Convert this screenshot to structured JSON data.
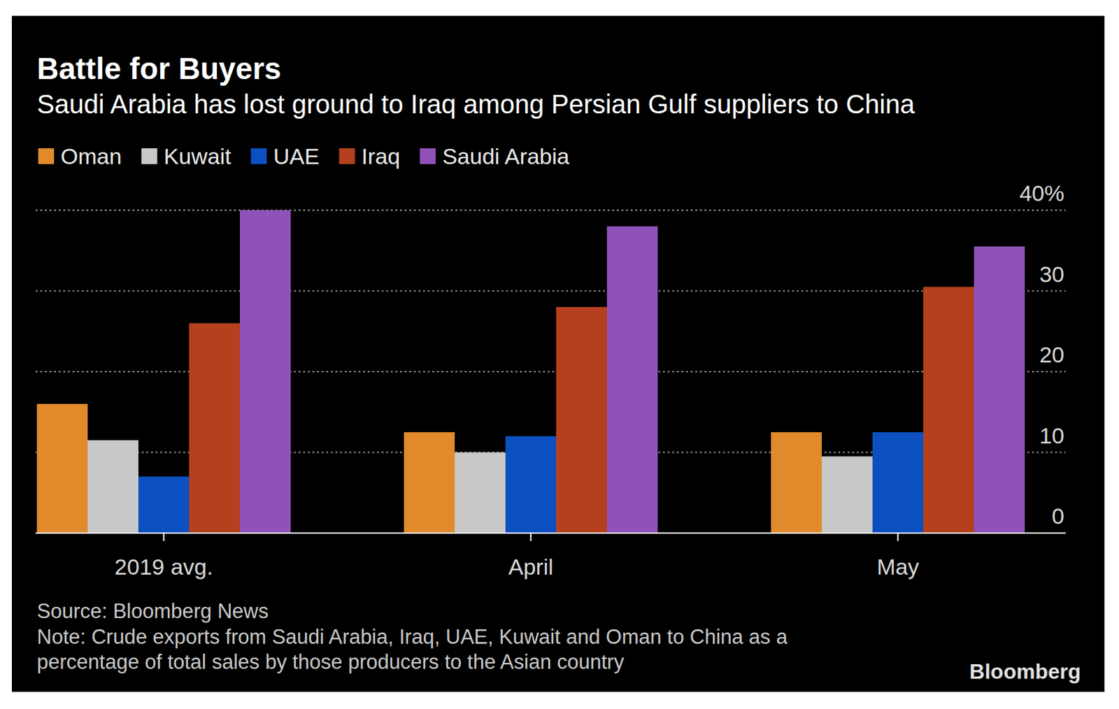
{
  "chart_data": {
    "type": "bar",
    "title": "Battle for Buyers",
    "subtitle": "Saudi Arabia has lost ground to Iraq among Persian Gulf suppliers to China",
    "categories": [
      "2019 avg.",
      "April",
      "May"
    ],
    "series": [
      {
        "name": "Oman",
        "color": "#e08a2c",
        "values": [
          16,
          12.5,
          12.5
        ]
      },
      {
        "name": "Kuwait",
        "color": "#c8c8c8",
        "values": [
          11.5,
          10,
          9.5
        ]
      },
      {
        "name": "UAE",
        "color": "#0b4fc0",
        "values": [
          7,
          12,
          12.5
        ]
      },
      {
        "name": "Iraq",
        "color": "#b5401e",
        "values": [
          26,
          28,
          30.5
        ]
      },
      {
        "name": "Saudi Arabia",
        "color": "#9052b8",
        "values": [
          40,
          38,
          35.5
        ]
      }
    ],
    "ylim": [
      0,
      40
    ],
    "yticks": [
      0,
      10,
      20,
      30,
      {
        "value": 40,
        "label": "40%"
      }
    ],
    "grid": true,
    "legend": "top",
    "source": "Source: Bloomberg News",
    "note": [
      "Note: Crude exports from Saudi Arabia, Iraq, UAE, Kuwait and Oman to China as a",
      "percentage of total sales by those producers to the Asian country"
    ],
    "credit": "Bloomberg"
  }
}
